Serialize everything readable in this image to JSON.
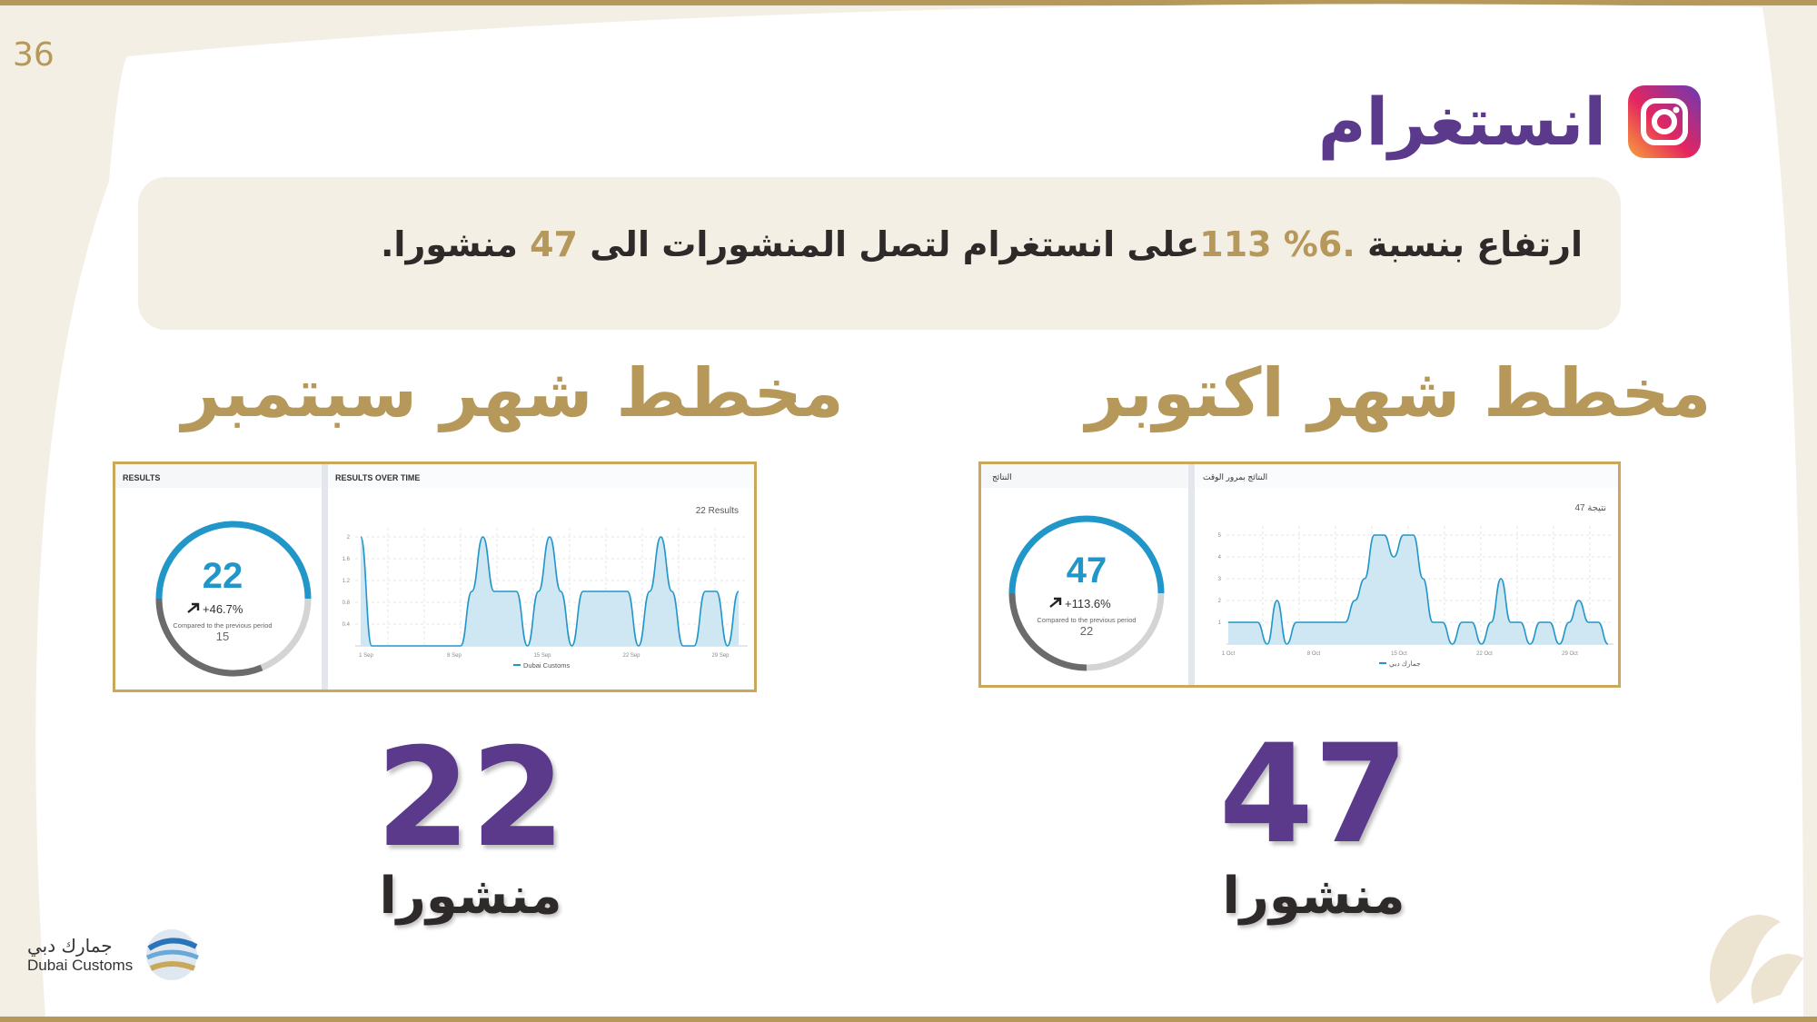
{
  "page": {
    "number": "36"
  },
  "header": {
    "title": "انستغرام",
    "icon": "instagram-icon"
  },
  "summary": {
    "part1": "ارتفاع بنسبة ",
    "percent": ".6% 113",
    "part2": "على انستغرام لتصل المنشورات الى ",
    "count": "47",
    "part3": " منشورا."
  },
  "september": {
    "title": "مخطط شهر سبتمبر",
    "count": "22",
    "label": "منشورا",
    "panel": {
      "results_title": "RESULTS",
      "results_value": "22",
      "change": "+46.7%",
      "compared_label": "Compared to the previous period",
      "previous_value": "15",
      "chart_title": "RESULTS OVER TIME",
      "chart_total": "22 Results",
      "legend": "Dubai Customs"
    }
  },
  "october": {
    "title": "مخطط شهر اكتوبر",
    "count": "47",
    "label": "منشورا",
    "panel": {
      "results_title": "النتائج",
      "results_value": "47",
      "change": "+113.6%",
      "compared_label": "Compared to the previous period",
      "previous_value": "22",
      "chart_title": "النتائج بمرور الوقت",
      "chart_total": "47 نتيجة",
      "legend": "جمارك دبي"
    }
  },
  "logo": {
    "arabic": "جمارك دبي",
    "english": "Dubai Customs"
  },
  "colors": {
    "gold": "#b5985a",
    "purple": "#5b3a8c",
    "chart_blue": "#2196c9",
    "chart_fill": "#cfe6f3"
  },
  "chart_data": [
    {
      "type": "area",
      "title": "RESULTS OVER TIME",
      "series": [
        {
          "name": "Dubai Customs",
          "values": [
            2,
            0,
            0,
            0,
            0,
            0,
            0,
            0,
            0,
            0,
            1,
            2,
            1,
            1,
            1,
            0,
            1,
            2,
            1,
            0,
            1,
            1,
            1,
            1,
            1,
            0,
            1,
            2,
            1,
            0,
            0,
            1,
            1,
            0,
            1
          ]
        }
      ],
      "x_ticks": [
        "1 Sep",
        "8 Sep",
        "15 Sep",
        "22 Sep",
        "29 Sep"
      ],
      "y_ticks": [
        "0.4",
        "0.8",
        "1.2",
        "1.6",
        "2"
      ],
      "ylim": [
        0,
        2
      ]
    },
    {
      "type": "area",
      "title": "النتائج بمرور الوقت",
      "series": [
        {
          "name": "جمارك دبي",
          "values": [
            1,
            1,
            1,
            1,
            0,
            2,
            0,
            1,
            1,
            1,
            1,
            1,
            1,
            2,
            3,
            5,
            5,
            4,
            5,
            5,
            3,
            1,
            1,
            0,
            1,
            1,
            0,
            1,
            3,
            1,
            1,
            0,
            1,
            1,
            0,
            1,
            2,
            1,
            1,
            0
          ]
        }
      ],
      "x_ticks": [
        "1 Oct",
        "8 Oct",
        "15 Oct",
        "22 Oct",
        "29 Oct"
      ],
      "y_ticks": [
        "1",
        "2",
        "3",
        "4",
        "5"
      ],
      "ylim": [
        0,
        5
      ]
    }
  ]
}
